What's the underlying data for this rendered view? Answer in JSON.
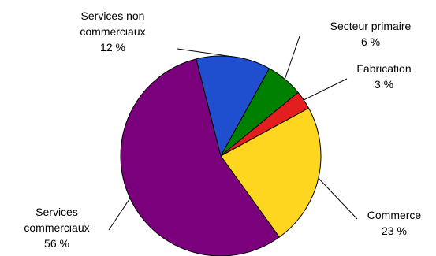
{
  "chart_data": {
    "type": "pie",
    "title": "",
    "slices": [
      {
        "label_lines": [
          "Secteur primaire",
          "6 %"
        ],
        "value": 6,
        "color": "#008000"
      },
      {
        "label_lines": [
          "Fabrication",
          "3 %"
        ],
        "value": 3,
        "color": "#e41e1e"
      },
      {
        "label_lines": [
          "Commerce",
          "23 %"
        ],
        "value": 23,
        "color": "#ffd61f"
      },
      {
        "label_lines": [
          "Services",
          "commerciaux",
          "56 %"
        ],
        "value": 56,
        "color": "#7b007b"
      },
      {
        "label_lines": [
          "Services non",
          "commerciaux",
          "12 %"
        ],
        "value": 12,
        "color": "#1f4fcf"
      }
    ]
  }
}
